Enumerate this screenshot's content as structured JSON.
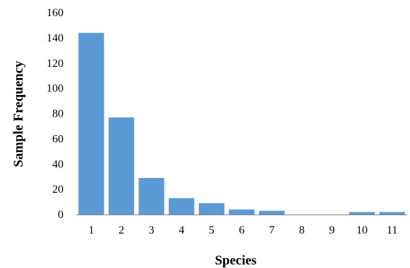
{
  "chart_data": {
    "type": "bar",
    "title": "",
    "xlabel": "Species",
    "ylabel": "Sample Frequency",
    "categories": [
      "1",
      "2",
      "3",
      "4",
      "5",
      "6",
      "7",
      "8",
      "9",
      "10",
      "11"
    ],
    "values": [
      144,
      77,
      29,
      13,
      9,
      4,
      3,
      0,
      0,
      2,
      2
    ],
    "ylim": [
      0,
      160
    ],
    "yticks": [
      "0",
      "20",
      "40",
      "60",
      "80",
      "100",
      "120",
      "140",
      "160"
    ],
    "grid": false,
    "legend": "none",
    "bar_color": "#5B9BD5",
    "axis_color": "#868686"
  }
}
